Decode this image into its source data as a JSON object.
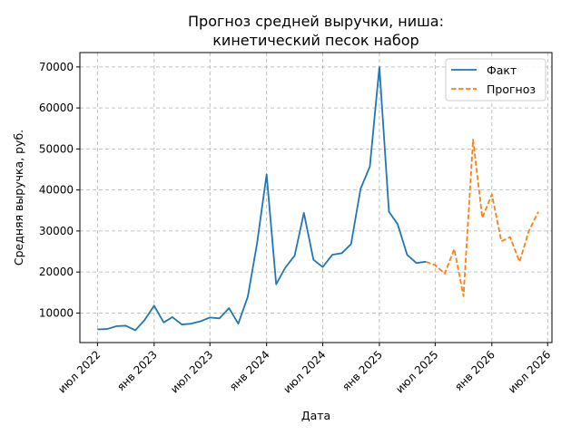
{
  "chart_data": {
    "type": "line",
    "title_lines": [
      "Прогноз средней выручки, ниша:",
      "кинетический песок набор"
    ],
    "xlabel": "Дата",
    "ylabel": "Средняя выручка, руб.",
    "xlim": [
      "2022-05-05",
      "2026-07-15"
    ],
    "ylim": [
      2800,
      73500
    ],
    "yticks": [
      10000,
      20000,
      30000,
      40000,
      50000,
      60000,
      70000
    ],
    "xticks": [
      {
        "date": "2022-07-01",
        "label": "июл 2022"
      },
      {
        "date": "2023-01-01",
        "label": "янв 2023"
      },
      {
        "date": "2023-07-01",
        "label": "июл 2023"
      },
      {
        "date": "2024-01-01",
        "label": "янв 2024"
      },
      {
        "date": "2024-07-01",
        "label": "июл 2024"
      },
      {
        "date": "2025-01-01",
        "label": "янв 2025"
      },
      {
        "date": "2025-07-01",
        "label": "июл 2025"
      },
      {
        "date": "2026-01-01",
        "label": "янв 2026"
      },
      {
        "date": "2026-07-01",
        "label": "июл 2026"
      }
    ],
    "grid": true,
    "legend_position": "top-right",
    "series": [
      {
        "name": "Факт",
        "color": "#1f77b4",
        "style": "solid",
        "points": [
          {
            "x": "2022-07-01",
            "y": 6000
          },
          {
            "x": "2022-08-01",
            "y": 6100
          },
          {
            "x": "2022-09-01",
            "y": 6800
          },
          {
            "x": "2022-10-01",
            "y": 6900
          },
          {
            "x": "2022-11-01",
            "y": 5800
          },
          {
            "x": "2022-12-01",
            "y": 8300
          },
          {
            "x": "2023-01-01",
            "y": 11800
          },
          {
            "x": "2023-02-01",
            "y": 7700
          },
          {
            "x": "2023-03-01",
            "y": 9000
          },
          {
            "x": "2023-04-01",
            "y": 7200
          },
          {
            "x": "2023-05-01",
            "y": 7400
          },
          {
            "x": "2023-06-01",
            "y": 8000
          },
          {
            "x": "2023-07-01",
            "y": 8900
          },
          {
            "x": "2023-08-01",
            "y": 8700
          },
          {
            "x": "2023-09-01",
            "y": 11200
          },
          {
            "x": "2023-10-01",
            "y": 7400
          },
          {
            "x": "2023-11-01",
            "y": 14000
          },
          {
            "x": "2023-12-01",
            "y": 27000
          },
          {
            "x": "2024-01-01",
            "y": 43800
          },
          {
            "x": "2024-02-01",
            "y": 17000
          },
          {
            "x": "2024-03-01",
            "y": 21000
          },
          {
            "x": "2024-04-01",
            "y": 24000
          },
          {
            "x": "2024-05-01",
            "y": 34400
          },
          {
            "x": "2024-06-01",
            "y": 23000
          },
          {
            "x": "2024-07-01",
            "y": 21200
          },
          {
            "x": "2024-08-01",
            "y": 24200
          },
          {
            "x": "2024-09-01",
            "y": 24600
          },
          {
            "x": "2024-10-01",
            "y": 26800
          },
          {
            "x": "2024-11-01",
            "y": 40300
          },
          {
            "x": "2024-12-01",
            "y": 45700
          },
          {
            "x": "2025-01-01",
            "y": 70000
          },
          {
            "x": "2025-02-01",
            "y": 34700
          },
          {
            "x": "2025-03-01",
            "y": 31700
          },
          {
            "x": "2025-04-01",
            "y": 24200
          },
          {
            "x": "2025-05-01",
            "y": 22200
          },
          {
            "x": "2025-06-01",
            "y": 22500
          }
        ]
      },
      {
        "name": "Прогноз",
        "color": "#ff7f0e",
        "style": "dashed",
        "points": [
          {
            "x": "2025-06-01",
            "y": 22500
          },
          {
            "x": "2025-07-01",
            "y": 21700
          },
          {
            "x": "2025-08-01",
            "y": 19600
          },
          {
            "x": "2025-09-01",
            "y": 25600
          },
          {
            "x": "2025-10-01",
            "y": 14100
          },
          {
            "x": "2025-11-01",
            "y": 52300
          },
          {
            "x": "2025-12-01",
            "y": 33200
          },
          {
            "x": "2026-01-01",
            "y": 38900
          },
          {
            "x": "2026-02-01",
            "y": 27500
          },
          {
            "x": "2026-03-01",
            "y": 28500
          },
          {
            "x": "2026-04-01",
            "y": 22500
          },
          {
            "x": "2026-05-01",
            "y": 30000
          },
          {
            "x": "2026-06-01",
            "y": 34700
          }
        ]
      }
    ]
  }
}
